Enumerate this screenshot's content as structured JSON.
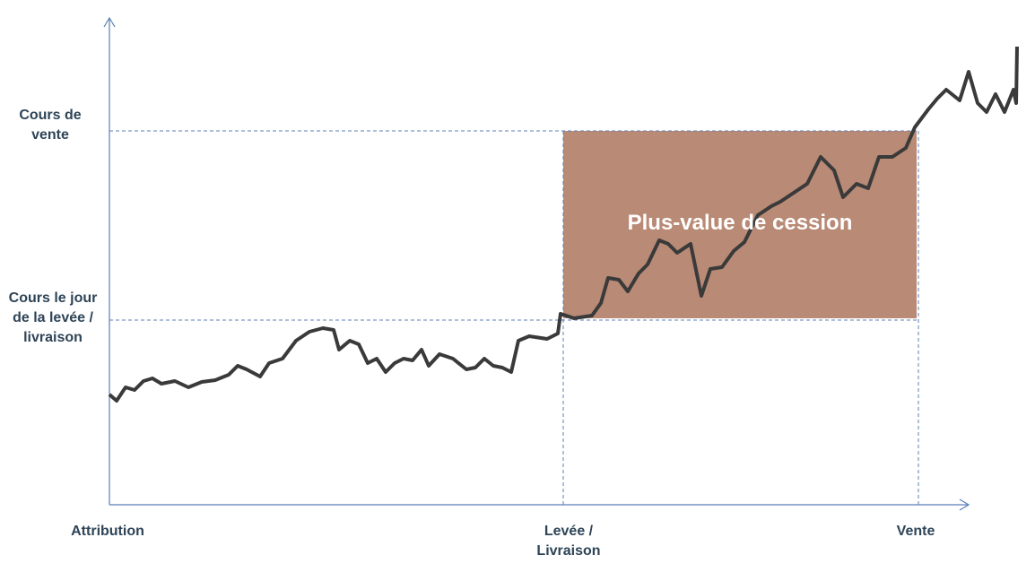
{
  "y_labels": {
    "sale_price": "Cours de vente",
    "exercise_price": "Cours le jour de la levée / livraison"
  },
  "x_labels": {
    "grant": "Attribution",
    "exercise": "Levée / Livraison",
    "sale": "Vente"
  },
  "gain_box": {
    "label": "Plus-value de cession"
  }
}
